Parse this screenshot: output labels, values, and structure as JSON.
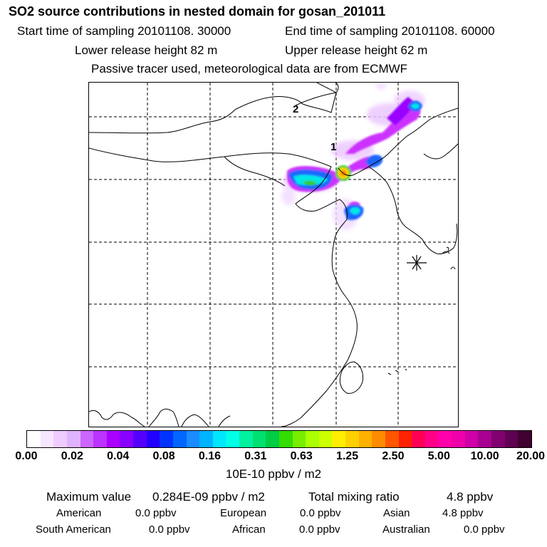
{
  "header": {
    "title": "SO2 source contributions in nested domain for gosan_201011",
    "start_label": "Start time of sampling 20101108. 30000",
    "end_label": "End time of sampling 20101108. 60000",
    "lower_label": "Lower release height   82 m",
    "upper_label": "Upper release height   62 m",
    "tracer_note": "Passive tracer used, meteorological data are from ECMWF"
  },
  "map": {
    "marker_1": "1",
    "marker_2": "2",
    "colors": {
      "magenta": "#cc33ff",
      "violet": "#9900ff",
      "blue": "#1a66ff",
      "cyan": "#00e6e6",
      "green": "#33cc33",
      "yellow": "#ffd700",
      "orange": "#ff8c00"
    }
  },
  "colorbar": {
    "colors": [
      "#ffffff",
      "#f7e6ff",
      "#eeccff",
      "#e0b3ff",
      "#cc66ff",
      "#bb33ff",
      "#aa00ff",
      "#8800ff",
      "#5500ff",
      "#2200ff",
      "#0033ff",
      "#0066ff",
      "#1a8cff",
      "#00b3ff",
      "#00e6ff",
      "#00ffe6",
      "#00f0a0",
      "#00e070",
      "#00cc44",
      "#33dd00",
      "#77ee00",
      "#aaff00",
      "#ccff00",
      "#ffee00",
      "#ffd000",
      "#ffb000",
      "#ff8c00",
      "#ff5500",
      "#ff2200",
      "#ff0055",
      "#ff0088",
      "#ff00aa",
      "#ee00aa",
      "#d000a8",
      "#a80090",
      "#800070",
      "#600050",
      "#400030"
    ],
    "ticks": [
      "0.00",
      "0.02",
      "0.04",
      "0.08",
      "0.16",
      "0.31",
      "0.63",
      "1.25",
      "2.50",
      "5.00",
      "10.00",
      "20.00"
    ],
    "unit": "10E-10 ppbv / m2"
  },
  "stats": {
    "max_label": "Maximum value",
    "max_value": "0.284E-09 ppbv / m2",
    "total_label": "Total mixing ratio",
    "total_value": "4.8 ppbv",
    "regions": [
      {
        "name": "American",
        "value": "0.0 ppbv"
      },
      {
        "name": "European",
        "value": "0.0 ppbv"
      },
      {
        "name": "Asian",
        "value": "4.8 ppbv"
      },
      {
        "name": "South American",
        "value": "0.0 ppbv"
      },
      {
        "name": "African",
        "value": "0.0 ppbv"
      },
      {
        "name": "Australian",
        "value": "0.0 ppbv"
      }
    ]
  }
}
